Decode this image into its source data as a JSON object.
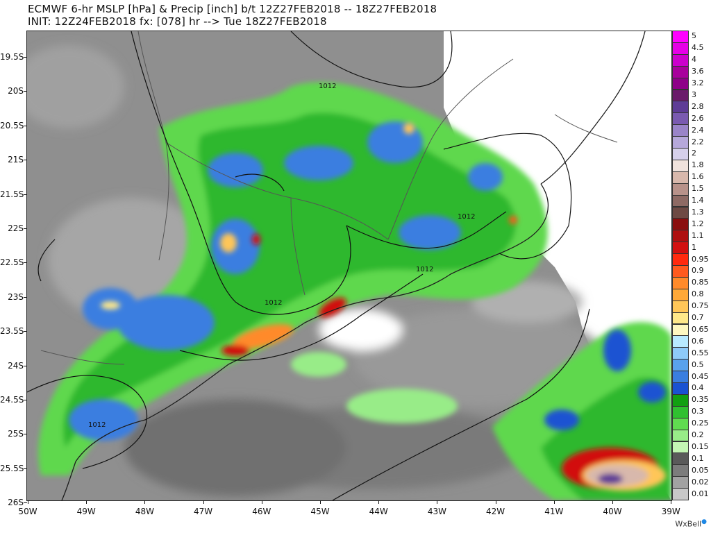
{
  "header": {
    "line1": "ECMWF 6-hr MSLP [hPa] & Precip [inch] b/t 12Z27FEB2018 -- 18Z27FEB2018",
    "line2": "INIT: 12Z24FEB2018 fx: [078] hr --> Tue 18Z27FEB2018"
  },
  "axes": {
    "lat_labels": [
      "19.5S",
      "20S",
      "20.5S",
      "21S",
      "21.5S",
      "22S",
      "22.5S",
      "23S",
      "23.5S",
      "24S",
      "24.5S",
      "25S",
      "25.5S",
      "26S"
    ],
    "lon_labels": [
      "50W",
      "49W",
      "48W",
      "47W",
      "46W",
      "45W",
      "44W",
      "43W",
      "42W",
      "41W",
      "40W",
      "39W"
    ]
  },
  "isobars": {
    "labels": [
      "1012",
      "1012",
      "1012",
      "1012",
      "1012"
    ]
  },
  "legend": {
    "items": [
      {
        "label": "5",
        "color": "#ff00ff"
      },
      {
        "label": "4.5",
        "color": "#e600e6"
      },
      {
        "label": "4",
        "color": "#cc00cc"
      },
      {
        "label": "3.6",
        "color": "#a8009c"
      },
      {
        "label": "3.2",
        "color": "#8e0088"
      },
      {
        "label": "3",
        "color": "#6a1b6a"
      },
      {
        "label": "2.8",
        "color": "#5e3c96"
      },
      {
        "label": "2.6",
        "color": "#7a5ab0"
      },
      {
        "label": "2.4",
        "color": "#9a84c8"
      },
      {
        "label": "2.2",
        "color": "#b6a8da"
      },
      {
        "label": "2",
        "color": "#d6d0ea"
      },
      {
        "label": "1.8",
        "color": "#f0e2dc"
      },
      {
        "label": "1.6",
        "color": "#d8b8ac"
      },
      {
        "label": "1.5",
        "color": "#b8928a"
      },
      {
        "label": "1.4",
        "color": "#8e6a64"
      },
      {
        "label": "1.3",
        "color": "#6e4a44"
      },
      {
        "label": "1.2",
        "color": "#8a0e0e"
      },
      {
        "label": "1.1",
        "color": "#ae1010"
      },
      {
        "label": "1",
        "color": "#d21010"
      },
      {
        "label": "0.95",
        "color": "#ff2a0e"
      },
      {
        "label": "0.9",
        "color": "#ff5a1e"
      },
      {
        "label": "0.85",
        "color": "#ff8a2a"
      },
      {
        "label": "0.8",
        "color": "#ffa838"
      },
      {
        "label": "0.75",
        "color": "#ffc658"
      },
      {
        "label": "0.7",
        "color": "#ffe88a"
      },
      {
        "label": "0.65",
        "color": "#fff8c0"
      },
      {
        "label": "0.6",
        "color": "#b8eaff"
      },
      {
        "label": "0.55",
        "color": "#8ecaf8"
      },
      {
        "label": "0.5",
        "color": "#5aa2ec"
      },
      {
        "label": "0.45",
        "color": "#3a7ee0"
      },
      {
        "label": "0.4",
        "color": "#1a52d2"
      },
      {
        "label": "0.35",
        "color": "#12a012"
      },
      {
        "label": "0.3",
        "color": "#30c030"
      },
      {
        "label": "0.25",
        "color": "#60dc50"
      },
      {
        "label": "0.2",
        "color": "#98ec88"
      },
      {
        "label": "0.15",
        "color": "#c4f6b4"
      },
      {
        "label": "0.1",
        "color": "#5a5a5a"
      },
      {
        "label": "0.05",
        "color": "#7c7c7c"
      },
      {
        "label": "0.02",
        "color": "#a2a2a2"
      },
      {
        "label": "0.01",
        "color": "#c8c8c8"
      }
    ]
  },
  "credit": {
    "brand": "WxBell"
  }
}
